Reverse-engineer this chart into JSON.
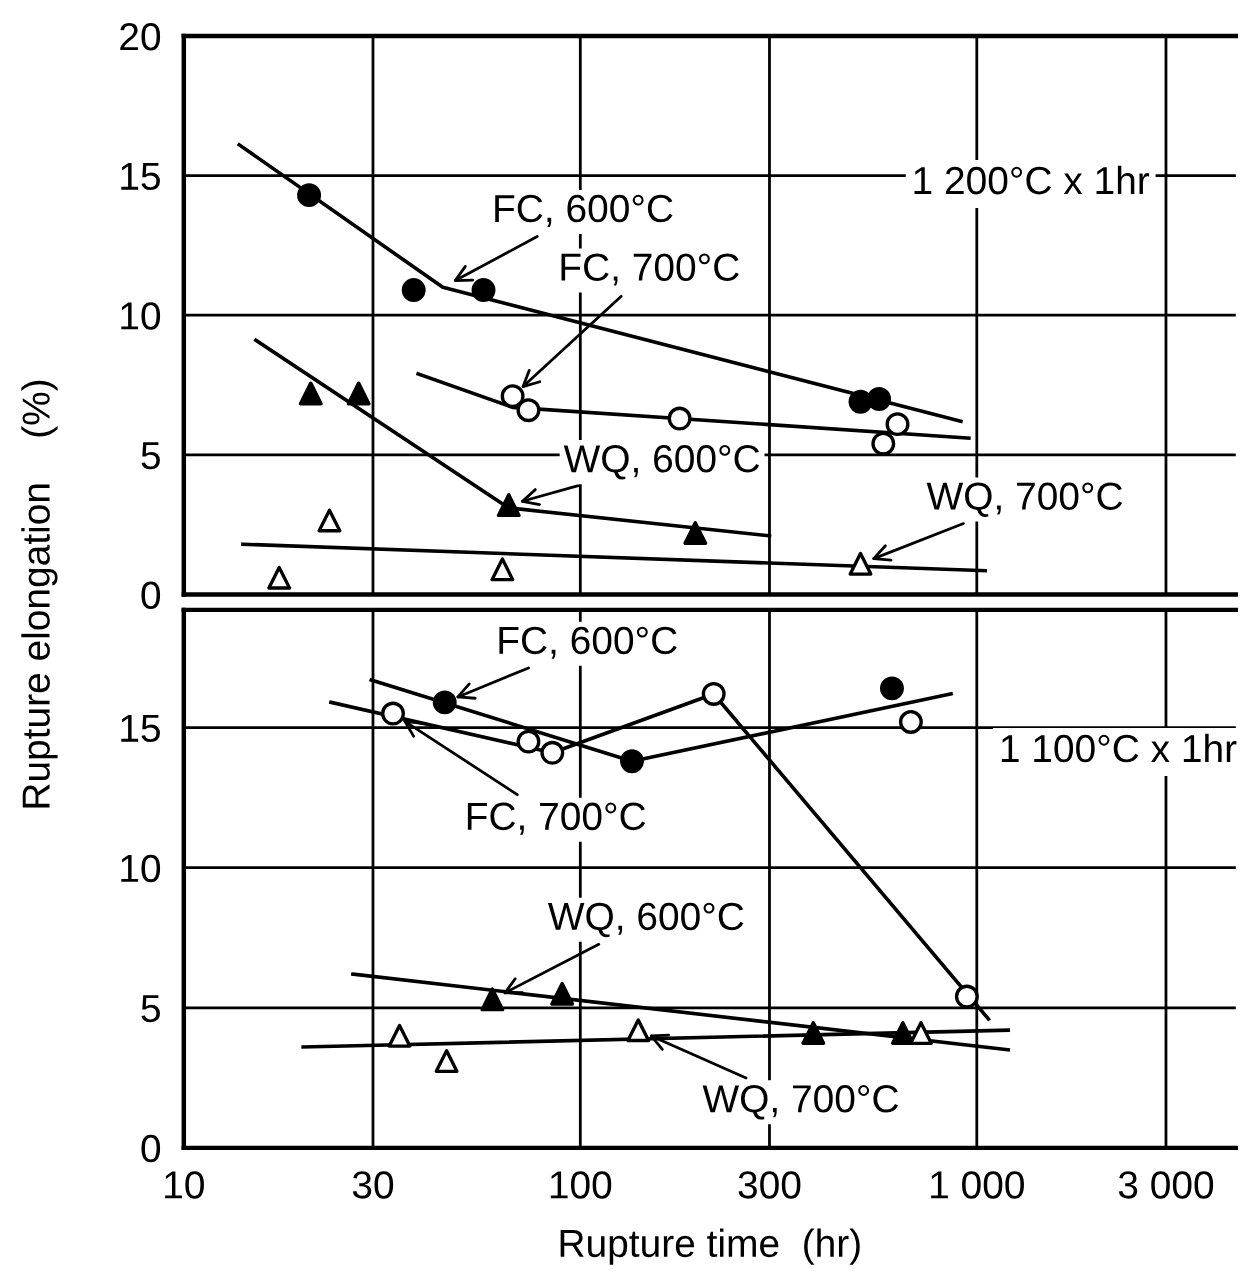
{
  "chart_data": [
    {
      "type": "scatter",
      "ylabel": "Rupture elongation    (%)",
      "log": "x",
      "xlim": [
        10,
        4500
      ],
      "ylim": [
        0,
        20
      ],
      "xticks": [
        {
          "value": 10,
          "label": null
        },
        {
          "value": 30,
          "label": null
        },
        {
          "value": 100,
          "label": null
        },
        {
          "value": 300,
          "label": null
        },
        {
          "value": 1000,
          "label": null
        },
        {
          "value": 3000,
          "label": null
        }
      ],
      "yticks": [
        0,
        5,
        10,
        15,
        20
      ],
      "grid": true,
      "tick_labels": "y",
      "series": [
        {
          "marker": "circle",
          "color": "#000000",
          "x": [
            20.7,
            38,
            57,
            509,
            567
          ],
          "values": [
            14.3,
            10.9,
            10.9,
            6.9,
            7.0
          ]
        },
        {
          "marker": "circle",
          "color": "#ffffff",
          "x": [
            67.5,
            74,
            178,
            581,
            631
          ],
          "values": [
            7.1,
            6.6,
            6.3,
            5.4,
            6.1
          ]
        },
        {
          "marker": "triangle",
          "color": "#000000",
          "x": [
            20.9,
            27.6,
            66,
            195
          ],
          "values": [
            7.2,
            7.2,
            3.2,
            2.2
          ]
        },
        {
          "marker": "triangle",
          "color": "#ffffff",
          "x": [
            17.4,
            23.3,
            63.6,
            509
          ],
          "values": [
            0.6,
            2.65,
            0.9,
            1.1
          ]
        },
        {
          "type": "line",
          "color": "#000000",
          "x": [
            13.8,
            45,
            912
          ],
          "values": [
            16.1,
            11.0,
            6.2
          ]
        },
        {
          "type": "line",
          "color": "#000000",
          "x": [
            39,
            67.5,
            955
          ],
          "values": [
            7.9,
            6.7,
            5.6
          ]
        },
        {
          "type": "line",
          "color": "#000000",
          "x": [
            15.2,
            66,
            300
          ],
          "values": [
            9.1,
            3.1,
            2.1
          ]
        },
        {
          "type": "line",
          "color": "#000000",
          "x": [
            14.1,
            1050
          ],
          "values": [
            1.8,
            0.85
          ]
        }
      ],
      "annotations": [
        {
          "text": "FC, 600°C",
          "x": 45,
          "y": 11.0
        },
        {
          "text": "FC, 700°C",
          "x": 67.5,
          "y": 7.1
        },
        {
          "text": "WQ, 600°C",
          "x": 66,
          "y": 3.2
        },
        {
          "text": "WQ, 700°C",
          "x": 509,
          "y": 1.1
        },
        "1 200°C x 1hr"
      ]
    },
    {
      "type": "scatter",
      "xlabel": "Rupture time  (hr)",
      "log": "x",
      "xlim": [
        10,
        4500
      ],
      "ylim": [
        0,
        19.2
      ],
      "xticks": [
        10,
        30,
        100,
        300,
        {
          "value": 1000,
          "label": "1 000"
        },
        {
          "value": 3000,
          "label": "3 000"
        }
      ],
      "yticks": [
        0,
        5,
        10,
        15
      ],
      "grid": true,
      "series": [
        {
          "marker": "circle",
          "color": "#000000",
          "x": [
            45.5,
            135,
            611
          ],
          "values": [
            15.9,
            13.8,
            16.4
          ]
        },
        {
          "marker": "circle",
          "color": "#ffffff",
          "x": [
            33.7,
            74,
            85,
            217,
            682,
            944
          ],
          "values": [
            15.5,
            14.5,
            14.1,
            16.2,
            15.2,
            5.4
          ]
        },
        {
          "marker": "triangle",
          "color": "#000000",
          "x": [
            60,
            90,
            387,
            651
          ],
          "values": [
            5.3,
            5.5,
            4.1,
            4.1
          ]
        },
        {
          "marker": "triangle",
          "color": "#ffffff",
          "x": [
            35,
            46,
            140,
            723
          ],
          "values": [
            4.0,
            3.1,
            4.2,
            4.1
          ]
        },
        {
          "type": "line",
          "color": "#000000",
          "x": [
            29.7,
            135,
            861
          ],
          "values": [
            16.7,
            13.8,
            16.2
          ]
        },
        {
          "type": "line",
          "color": "#000000",
          "x": [
            23.5,
            85,
            217,
            1070
          ],
          "values": [
            15.9,
            14.1,
            16.2,
            4.6
          ]
        },
        {
          "type": "line",
          "color": "#000000",
          "x": [
            26.7,
            1200
          ],
          "values": [
            6.2,
            3.5
          ]
        },
        {
          "type": "line",
          "color": "#000000",
          "x": [
            20,
            1200
          ],
          "values": [
            3.6,
            4.2
          ]
        }
      ],
      "annotations": [
        {
          "text": "FC, 600°C",
          "x": 45.5,
          "y": 15.9
        },
        {
          "text": "FC, 700°C",
          "x": 33.7,
          "y": 15.5
        },
        {
          "text": "WQ, 600°C",
          "x": 60,
          "y": 5.3
        },
        {
          "text": "WQ, 700°C",
          "x": 140,
          "y": 4.2
        },
        "1 100°C x 1hr"
      ]
    }
  ]
}
